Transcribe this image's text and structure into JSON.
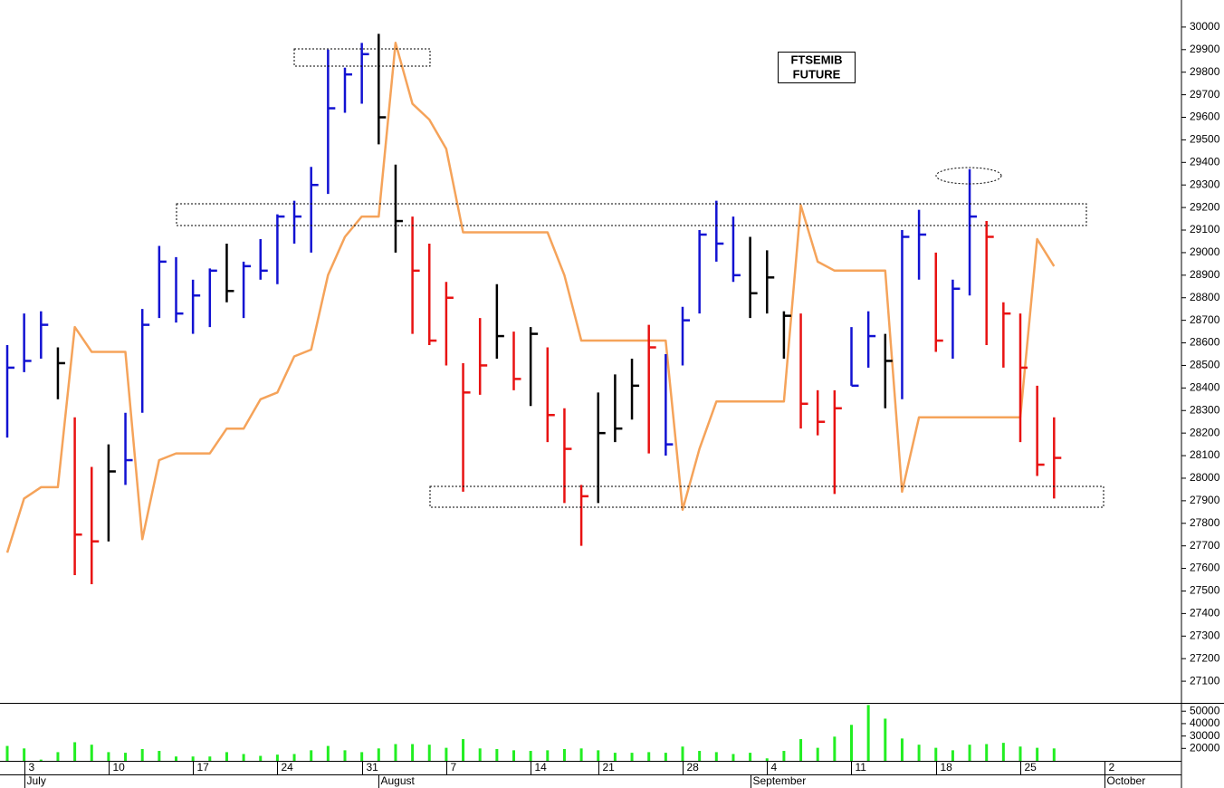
{
  "chart_data": {
    "type": "ohlc",
    "title_lines": [
      "FTSEMIB",
      "FUTURE"
    ],
    "categories": [
      null,
      "3",
      null,
      null,
      null,
      null,
      "10",
      null,
      null,
      null,
      null,
      "17",
      null,
      null,
      null,
      null,
      "24",
      null,
      null,
      null,
      null,
      "31",
      null,
      null,
      null,
      null,
      "7",
      null,
      null,
      null,
      null,
      "14",
      null,
      null,
      null,
      "21",
      null,
      null,
      null,
      null,
      "28",
      null,
      null,
      null,
      null,
      "4",
      null,
      null,
      null,
      null,
      "11",
      null,
      null,
      null,
      null,
      "18",
      null,
      null,
      null,
      null,
      "25",
      null,
      null,
      null,
      null,
      "2"
    ],
    "months": [
      null,
      "July",
      null,
      null,
      null,
      null,
      null,
      null,
      null,
      null,
      null,
      null,
      null,
      null,
      null,
      null,
      null,
      null,
      null,
      null,
      null,
      null,
      "August",
      null,
      null,
      null,
      null,
      null,
      null,
      null,
      null,
      null,
      null,
      null,
      null,
      null,
      null,
      null,
      null,
      null,
      null,
      null,
      null,
      null,
      "September",
      null,
      null,
      null,
      null,
      null,
      null,
      null,
      null,
      null,
      null,
      null,
      null,
      null,
      null,
      null,
      null,
      null,
      null,
      null,
      null,
      "October"
    ],
    "palette": {
      "blue": "#1212d2",
      "red": "#e81212",
      "black": "#000000"
    },
    "high": [
      28590,
      28730,
      28740,
      28580,
      28270,
      28050,
      28150,
      28290,
      28750,
      29030,
      28980,
      28880,
      28930,
      29040,
      28960,
      29060,
      29170,
      29230,
      29380,
      29900,
      29820,
      29930,
      29970,
      29390,
      29160,
      29040,
      28870,
      28510,
      28710,
      28860,
      28650,
      28670,
      28580,
      28310,
      27970,
      28380,
      28460,
      28530,
      28680,
      28550,
      28760,
      29100,
      29230,
      29160,
      29070,
      29010,
      28740,
      28730,
      28390,
      28390,
      28670,
      28740,
      28640,
      29100,
      29190,
      29000,
      28880,
      29370,
      29140,
      28780,
      28730,
      28410,
      28270,
      null,
      null,
      null
    ],
    "low": [
      28180,
      28470,
      28530,
      28350,
      27570,
      27530,
      27720,
      27970,
      28290,
      28710,
      28690,
      28640,
      28670,
      28780,
      28710,
      28880,
      28860,
      29040,
      29000,
      29260,
      29620,
      29660,
      29480,
      29000,
      28640,
      28590,
      28500,
      27940,
      28370,
      28530,
      28390,
      28320,
      28160,
      27890,
      27700,
      27890,
      28160,
      28260,
      28110,
      28100,
      28500,
      28730,
      28960,
      28870,
      28710,
      28730,
      28530,
      28220,
      28190,
      27930,
      28410,
      28490,
      28310,
      28350,
      28880,
      28560,
      28530,
      28810,
      28590,
      28490,
      28160,
      28010,
      27910,
      null,
      null,
      null
    ],
    "close": [
      28490,
      28520,
      28680,
      28510,
      27750,
      27720,
      28030,
      28080,
      28680,
      28960,
      28730,
      28810,
      28920,
      28830,
      28940,
      28920,
      29160,
      29160,
      29300,
      29640,
      29790,
      29880,
      29600,
      29140,
      28920,
      28610,
      28800,
      28380,
      28500,
      28630,
      28440,
      28640,
      28280,
      28130,
      27920,
      28200,
      28220,
      28410,
      28580,
      28150,
      28700,
      29080,
      29040,
      28900,
      28820,
      28890,
      28720,
      28330,
      28250,
      28310,
      28410,
      28630,
      28520,
      29070,
      29080,
      28610,
      28840,
      29160,
      29070,
      28730,
      28490,
      28060,
      28090,
      null,
      null,
      null
    ],
    "bar_colors": [
      "blue",
      "blue",
      "blue",
      "black",
      "red",
      "red",
      "black",
      "blue",
      "blue",
      "blue",
      "blue",
      "blue",
      "blue",
      "black",
      "blue",
      "blue",
      "blue",
      "blue",
      "blue",
      "blue",
      "blue",
      "blue",
      "black",
      "black",
      "red",
      "red",
      "red",
      "red",
      "red",
      "black",
      "red",
      "black",
      "red",
      "red",
      "red",
      "black",
      "black",
      "black",
      "red",
      "blue",
      "blue",
      "blue",
      "blue",
      "blue",
      "black",
      "black",
      "black",
      "red",
      "red",
      "red",
      "blue",
      "blue",
      "black",
      "blue",
      "blue",
      "red",
      "blue",
      "blue",
      "red",
      "red",
      "red",
      "red",
      "red",
      null,
      null,
      null
    ],
    "indicator": {
      "color": "#f5a35a",
      "values": [
        27670,
        27910,
        27960,
        27960,
        28670,
        28560,
        28560,
        28560,
        27730,
        28080,
        28110,
        28110,
        28110,
        28220,
        28220,
        28350,
        28380,
        28540,
        28570,
        28900,
        29070,
        29160,
        29160,
        29930,
        29660,
        29590,
        29460,
        29090,
        29090,
        29090,
        29090,
        29090,
        29090,
        28900,
        28610,
        28610,
        28610,
        28610,
        28610,
        28610,
        27860,
        28130,
        28340,
        28340,
        28340,
        28340,
        28340,
        29210,
        28960,
        28920,
        28920,
        28920,
        28920,
        27940,
        28270,
        28270,
        28270,
        28270,
        28270,
        28270,
        28270,
        29060,
        28940,
        null,
        null,
        null
      ]
    },
    "ylim": [
      27000,
      30120
    ],
    "yticks": [
      27100,
      27200,
      27300,
      27400,
      27500,
      27600,
      27700,
      27800,
      27900,
      28000,
      28100,
      28200,
      28300,
      28400,
      28500,
      28600,
      28700,
      28800,
      28900,
      29000,
      29100,
      29200,
      29300,
      29400,
      29500,
      29600,
      29700,
      29800,
      29900,
      30000
    ],
    "volume": {
      "color": "#22ee22",
      "values": [
        22000,
        20000,
        11000,
        17000,
        25000,
        23000,
        17000,
        16500,
        19500,
        18000,
        13500,
        13500,
        13500,
        17000,
        15500,
        14000,
        15000,
        15500,
        18500,
        22000,
        18500,
        17000,
        20000,
        23500,
        23500,
        23000,
        20500,
        27500,
        20000,
        19500,
        18500,
        18000,
        18500,
        19500,
        20000,
        18500,
        16500,
        16500,
        17000,
        16500,
        21500,
        18000,
        17000,
        15500,
        16500,
        12000,
        18000,
        27500,
        20500,
        29500,
        39000,
        55000,
        44000,
        28000,
        23000,
        20500,
        18500,
        23000,
        23500,
        24500,
        21500,
        20500,
        20000,
        null,
        null,
        null
      ],
      "ylim": [
        10000,
        56000
      ],
      "yticks": [
        20000,
        30000,
        40000,
        50000
      ]
    }
  }
}
